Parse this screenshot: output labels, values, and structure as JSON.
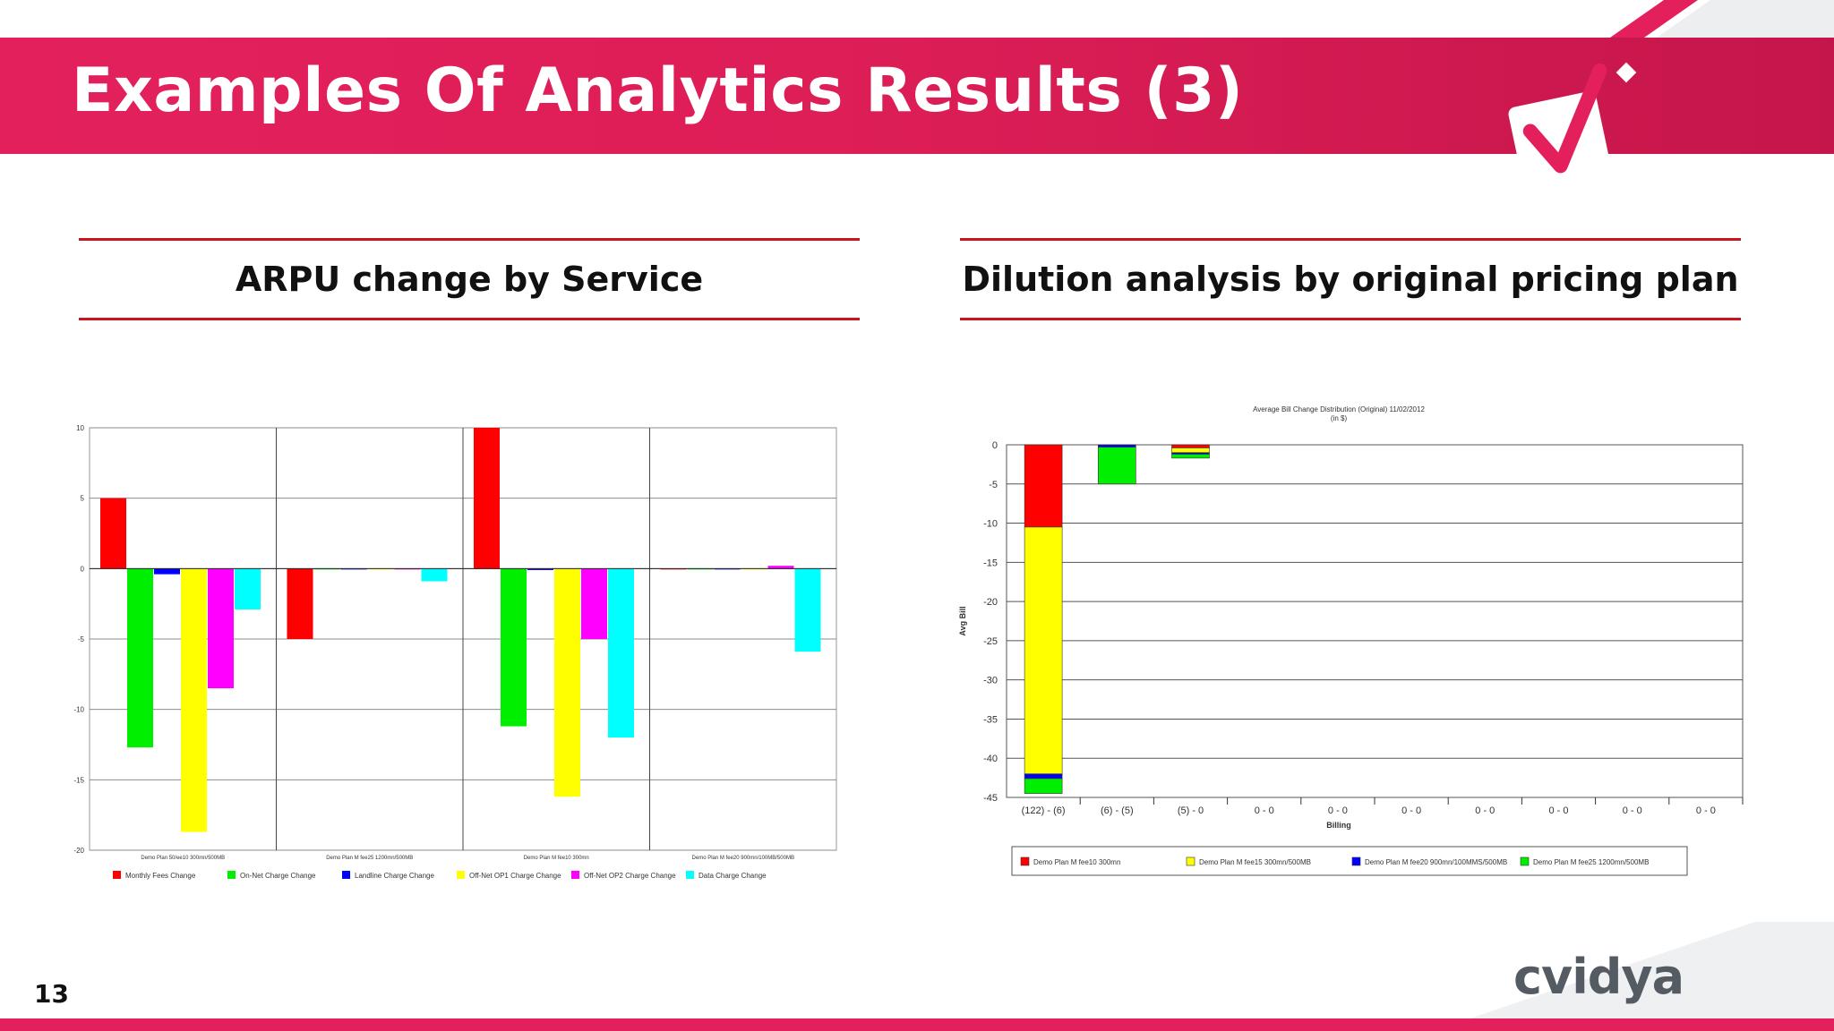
{
  "slide": {
    "title": "Examples Of Analytics Results (3)",
    "page_number": "13",
    "brand": "cvidya",
    "accent_color": "#e3205c",
    "rule_color": "#c4161c"
  },
  "sections": {
    "left_title": "ARPU change by Service",
    "right_title": "Dilution analysis by original pricing plan"
  },
  "chart_data": [
    {
      "type": "bar",
      "title": "",
      "ylim": [
        -20,
        10
      ],
      "yticks": [
        10,
        5,
        0,
        -5,
        -10,
        -15,
        -20
      ],
      "ytick_labels": [
        "10",
        "5",
        "0",
        "-5",
        "-10",
        "-15",
        "-20"
      ],
      "grid": true,
      "legend_position": "bottom",
      "categories": [
        "Demo Plan 50/ee10 300mn/500MB",
        "Demo Plan M fee25 1200mn/500MB",
        "Demo Plan M fee10 300mn",
        "Demo Plan M fee20 900mn/100MB/500MB"
      ],
      "series": [
        {
          "name": "Monthly Fees Change",
          "color": "#ff0000",
          "values": [
            5,
            -5,
            10,
            0
          ]
        },
        {
          "name": "On-Net Charge Change",
          "color": "#00ee00",
          "values": [
            -12.7,
            0,
            -11.2,
            0
          ]
        },
        {
          "name": "Landline Charge Change",
          "color": "#0000ff",
          "values": [
            -0.4,
            0,
            -0.1,
            0
          ]
        },
        {
          "name": "Off-Net OP1 Charge Change",
          "color": "#ffff00",
          "values": [
            -18.7,
            0,
            -16.2,
            0
          ]
        },
        {
          "name": "Off-Net OP2 Charge Change",
          "color": "#ff00ff",
          "values": [
            -8.5,
            0,
            -5,
            0.2
          ]
        },
        {
          "name": "Data Charge Change",
          "color": "#00ffff",
          "values": [
            -2.9,
            -0.9,
            -12,
            -5.9
          ]
        }
      ]
    },
    {
      "type": "bar",
      "stacked": true,
      "title": "Average Bill Change Distribution (Original) 11/02/2012",
      "subtitle": "(in $)",
      "xlabel": "Billing",
      "ylabel": "Avg Bill",
      "ylim": [
        -45,
        0
      ],
      "yticks": [
        0,
        -5,
        -10,
        -15,
        -20,
        -25,
        -30,
        -35,
        -40,
        -45
      ],
      "ytick_labels": [
        "0",
        "-5",
        "-10",
        "-15",
        "-20",
        "-25",
        "-30",
        "-35",
        "-40",
        "-45"
      ],
      "grid": true,
      "legend_position": "bottom",
      "categories": [
        "(122) - (6)",
        "(6) - (5)",
        "(5) - 0",
        "0 - 0",
        "0 - 0",
        "0 - 0",
        "0 - 0",
        "0 - 0",
        "0 - 0",
        "0 - 0"
      ],
      "series": [
        {
          "name": "Demo Plan M fee10 300mn",
          "color": "#ff0000",
          "values": [
            -10.5,
            0,
            -0.4,
            0,
            0,
            0,
            0,
            0,
            0,
            0
          ]
        },
        {
          "name": "Demo Plan M fee15 300mn/500MB",
          "color": "#ffff00",
          "values": [
            -31.5,
            0,
            -0.6,
            0,
            0,
            0,
            0,
            0,
            0,
            0
          ]
        },
        {
          "name": "Demo Plan M fee20 900mn/100MMS/500MB",
          "color": "#0000ff",
          "values": [
            -0.6,
            -0.3,
            -0.2,
            0,
            0,
            0,
            0,
            0,
            0,
            0
          ]
        },
        {
          "name": "Demo Plan M fee25 1200mn/500MB",
          "color": "#00ee00",
          "values": [
            -1.9,
            -4.7,
            -0.5,
            0,
            0,
            0,
            0,
            0,
            0,
            0
          ]
        }
      ]
    }
  ]
}
